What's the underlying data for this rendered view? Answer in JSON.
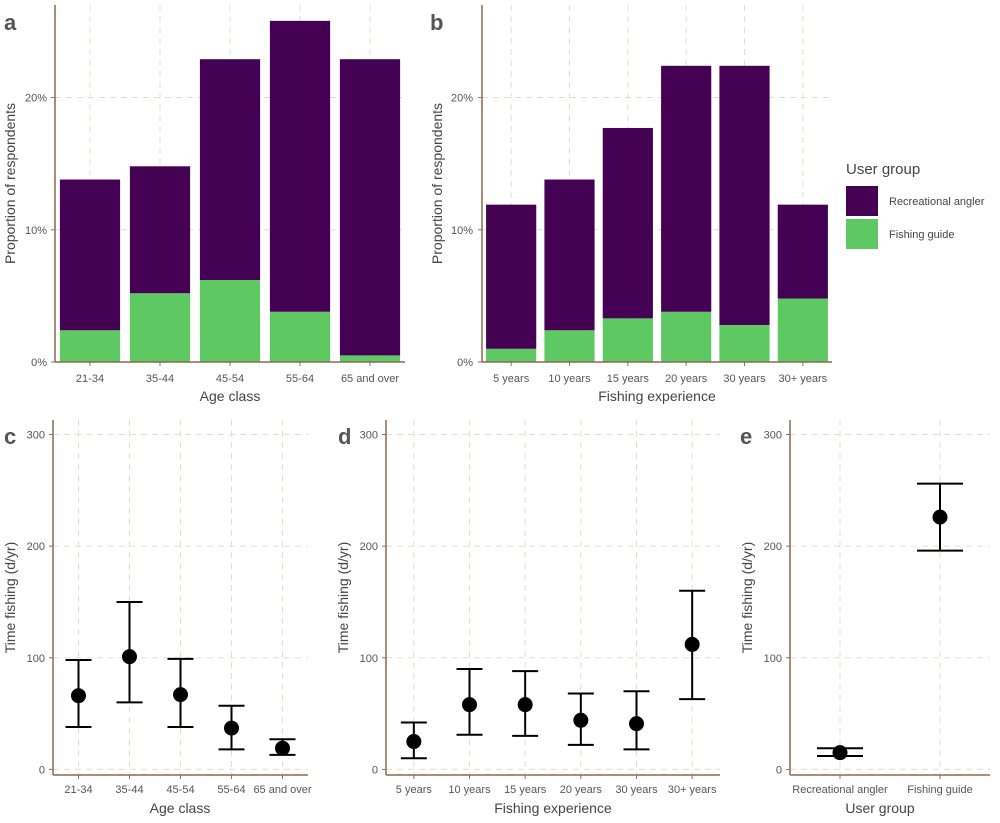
{
  "colors": {
    "recreational": "#440154",
    "guide": "#5ec962",
    "grid": "#ecdcc4",
    "axis": "#8b6a4f",
    "point": "#000000"
  },
  "legend": {
    "title": "User group",
    "entries": [
      "Recreational angler",
      "Fishing guide"
    ]
  },
  "chart_data": [
    {
      "panel": "a",
      "type": "bar",
      "stacked": true,
      "xlabel": "Age class",
      "ylabel": "Proportion of respondents",
      "ylim": [
        0,
        27
      ],
      "yticks": [
        0,
        10,
        20
      ],
      "yticklabels": [
        "0%",
        "10%",
        "20%"
      ],
      "categories": [
        "21-34",
        "35-44",
        "45-54",
        "55-64",
        "65 and over"
      ],
      "series": [
        {
          "name": "Fishing guide",
          "values": [
            2.4,
            5.2,
            6.2,
            3.8,
            0.5
          ]
        },
        {
          "name": "Recreational angler",
          "values": [
            11.4,
            9.6,
            16.7,
            22.0,
            22.4
          ]
        }
      ]
    },
    {
      "panel": "b",
      "type": "bar",
      "stacked": true,
      "xlabel": "Fishing experience",
      "ylabel": "Proportion of respondents",
      "ylim": [
        0,
        27
      ],
      "yticks": [
        0,
        10,
        20
      ],
      "yticklabels": [
        "0%",
        "10%",
        "20%"
      ],
      "categories": [
        "5 years",
        "10 years",
        "15 years",
        "20 years",
        "30 years",
        "30+ years"
      ],
      "series": [
        {
          "name": "Fishing guide",
          "values": [
            1.0,
            2.4,
            3.3,
            3.8,
            2.8,
            4.8
          ]
        },
        {
          "name": "Recreational angler",
          "values": [
            10.9,
            11.4,
            14.4,
            18.6,
            19.6,
            7.1
          ]
        }
      ]
    },
    {
      "panel": "c",
      "type": "scatter",
      "xlabel": "Age class",
      "ylabel": "Time fishing (d/yr)",
      "ylim": [
        -5,
        313
      ],
      "yticks": [
        0,
        100,
        200,
        300
      ],
      "yticklabels": [
        "0",
        "100",
        "200",
        "300"
      ],
      "categories": [
        "21-34",
        "35-44",
        "45-54",
        "55-64",
        "65 and over"
      ],
      "mean": [
        66,
        101,
        67,
        37,
        19
      ],
      "lower": [
        38,
        60,
        38,
        18,
        13
      ],
      "upper": [
        98,
        150,
        99,
        57,
        27
      ]
    },
    {
      "panel": "d",
      "type": "scatter",
      "xlabel": "Fishing experience",
      "ylabel": "Time fishing (d/yr)",
      "ylim": [
        -5,
        313
      ],
      "yticks": [
        0,
        100,
        200,
        300
      ],
      "yticklabels": [
        "0",
        "100",
        "200",
        "300"
      ],
      "categories": [
        "5 years",
        "10 years",
        "15 years",
        "20 years",
        "30 years",
        "30+ years"
      ],
      "mean": [
        25,
        58,
        58,
        44,
        41,
        112
      ],
      "lower": [
        10,
        31,
        30,
        22,
        18,
        63
      ],
      "upper": [
        42,
        90,
        88,
        68,
        70,
        160
      ]
    },
    {
      "panel": "e",
      "type": "scatter",
      "xlabel": "User group",
      "ylabel": "Time fishing (d/yr)",
      "ylim": [
        -5,
        313
      ],
      "yticks": [
        0,
        100,
        200,
        300
      ],
      "yticklabels": [
        "0",
        "100",
        "200",
        "300"
      ],
      "categories": [
        "Recreational angler",
        "Fishing guide"
      ],
      "mean": [
        15,
        226
      ],
      "lower": [
        12,
        196
      ],
      "upper": [
        19,
        256
      ]
    }
  ]
}
